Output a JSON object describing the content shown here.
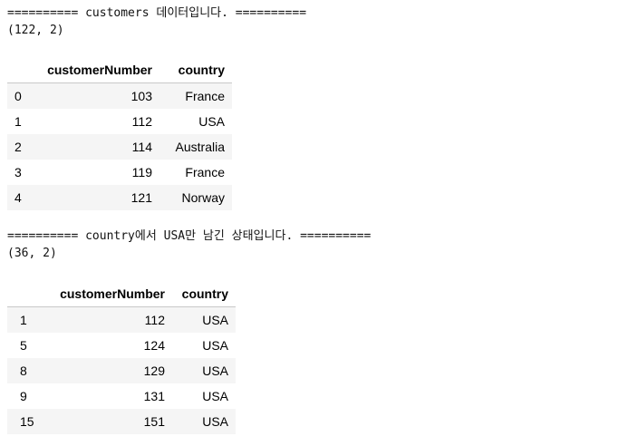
{
  "output1": {
    "message": "========== customers 데이터입니다. ==========",
    "shape": "(122, 2)"
  },
  "table1": {
    "columns": [
      "",
      "customerNumber",
      "country"
    ],
    "rows": [
      [
        "0",
        "103",
        "France"
      ],
      [
        "1",
        "112",
        "USA"
      ],
      [
        "2",
        "114",
        "Australia"
      ],
      [
        "3",
        "119",
        "France"
      ],
      [
        "4",
        "121",
        "Norway"
      ]
    ]
  },
  "output2": {
    "message": "========== country에서 USA만 남긴 상태입니다. ==========",
    "shape": "(36, 2)"
  },
  "table2": {
    "columns": [
      "",
      "customerNumber",
      "country"
    ],
    "rows": [
      [
        "1",
        "112",
        "USA"
      ],
      [
        "5",
        "124",
        "USA"
      ],
      [
        "8",
        "129",
        "USA"
      ],
      [
        "9",
        "131",
        "USA"
      ],
      [
        "15",
        "151",
        "USA"
      ]
    ]
  }
}
